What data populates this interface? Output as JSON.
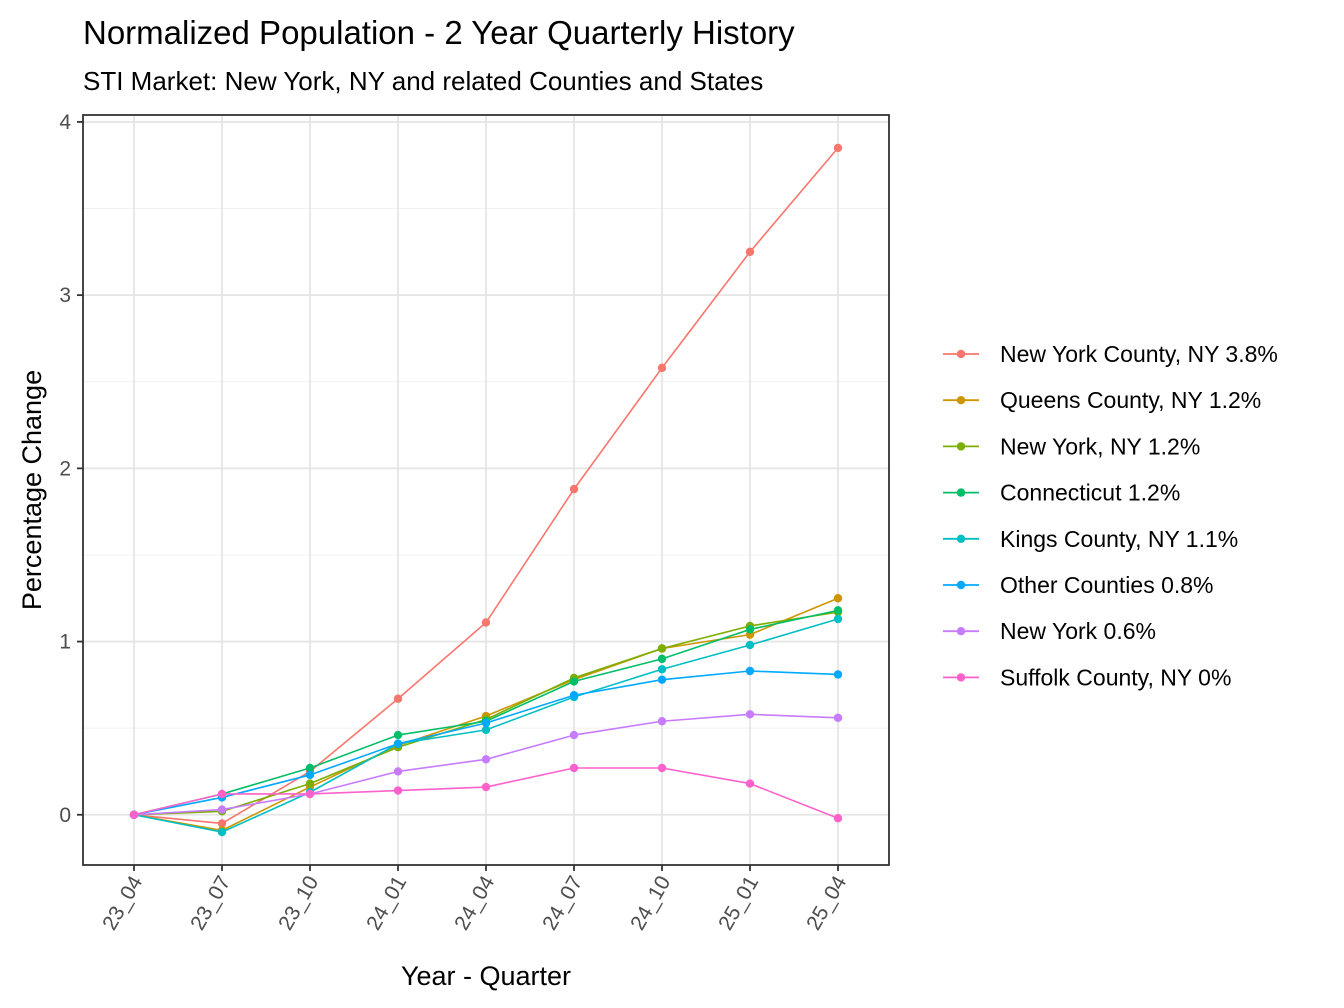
{
  "chart_data": {
    "type": "line",
    "title": "Normalized Population - 2 Year Quarterly History",
    "subtitle": "STI Market: New York, NY and related Counties and States",
    "xlabel": "Year - Quarter",
    "ylabel": "Percentage Change",
    "categories": [
      "23_04",
      "23_07",
      "23_10",
      "24_01",
      "24_04",
      "24_07",
      "24_10",
      "25_01",
      "25_04"
    ],
    "ylim": [
      -0.29,
      4.04
    ],
    "yticks": [
      0,
      1,
      2,
      3,
      4
    ],
    "grid": true,
    "legend_position": "right",
    "series": [
      {
        "name": "New York County, NY 3.8%",
        "color": "#F8766D",
        "values": [
          0,
          -0.05,
          0.25,
          0.67,
          1.11,
          1.88,
          2.58,
          3.25,
          3.85
        ]
      },
      {
        "name": "Queens County, NY 1.2%",
        "color": "#CD9600",
        "values": [
          0,
          -0.09,
          0.16,
          0.4,
          0.57,
          0.78,
          0.96,
          1.04,
          1.25
        ]
      },
      {
        "name": "New York, NY 1.2%",
        "color": "#7CAE00",
        "values": [
          0,
          0.02,
          0.18,
          0.39,
          0.55,
          0.79,
          0.96,
          1.09,
          1.17
        ]
      },
      {
        "name": "Connecticut 1.2%",
        "color": "#00BE67",
        "values": [
          0,
          0.12,
          0.27,
          0.46,
          0.54,
          0.77,
          0.9,
          1.07,
          1.18
        ]
      },
      {
        "name": "Kings County, NY 1.1%",
        "color": "#00BFC4",
        "values": [
          0,
          -0.1,
          0.13,
          0.41,
          0.49,
          0.68,
          0.84,
          0.98,
          1.13
        ]
      },
      {
        "name": "Other Counties 0.8%",
        "color": "#00A9FF",
        "values": [
          0,
          0.1,
          0.23,
          0.41,
          0.53,
          0.69,
          0.78,
          0.83,
          0.81
        ]
      },
      {
        "name": "New York 0.6%",
        "color": "#C77CFF",
        "values": [
          0,
          0.03,
          0.12,
          0.25,
          0.32,
          0.46,
          0.54,
          0.58,
          0.56
        ]
      },
      {
        "name": "Suffolk County, NY 0%",
        "color": "#FF61CC",
        "values": [
          0,
          0.12,
          0.12,
          0.14,
          0.16,
          0.27,
          0.27,
          0.18,
          -0.02
        ]
      }
    ]
  }
}
